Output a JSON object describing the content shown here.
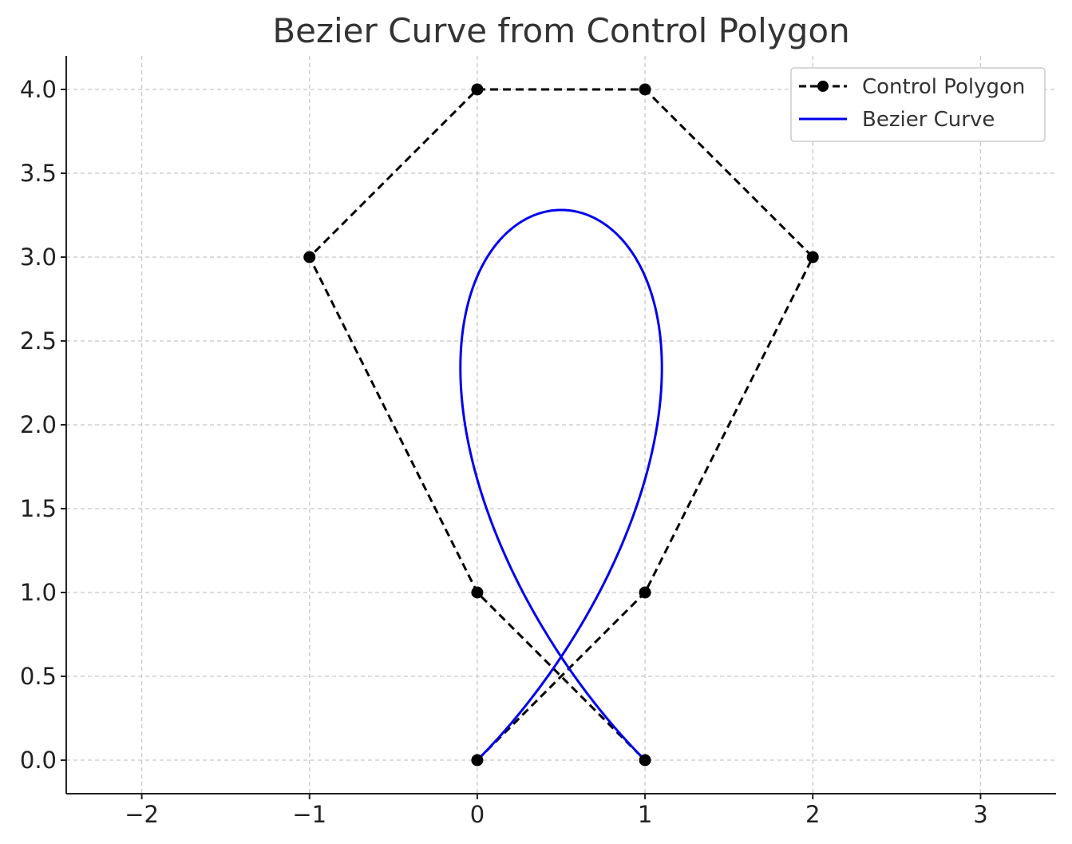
{
  "chart_data": {
    "type": "line",
    "title": "Bezier Curve from Control Polygon",
    "xlabel": "",
    "ylabel": "",
    "xlim": [
      -2.45,
      3.45
    ],
    "ylim": [
      -0.2,
      4.2
    ],
    "x_ticks": [
      -2,
      -1,
      0,
      1,
      2,
      3
    ],
    "x_tick_labels": [
      "−2",
      "−1",
      "0",
      "1",
      "2",
      "3"
    ],
    "y_ticks": [
      0.0,
      0.5,
      1.0,
      1.5,
      2.0,
      2.5,
      3.0,
      3.5,
      4.0
    ],
    "y_tick_labels": [
      "0.0",
      "0.5",
      "1.0",
      "1.5",
      "2.0",
      "2.5",
      "3.0",
      "3.5",
      "4.0"
    ],
    "grid": true,
    "legend_position": "top-right",
    "series": [
      {
        "name": "Control Polygon",
        "style": "dashed-with-markers",
        "color": "#000000",
        "points": [
          [
            0,
            0
          ],
          [
            1,
            1
          ],
          [
            2,
            3
          ],
          [
            1,
            4
          ],
          [
            0,
            4
          ],
          [
            -1,
            3
          ],
          [
            0,
            1
          ],
          [
            1,
            0
          ]
        ]
      },
      {
        "name": "Bezier Curve",
        "style": "solid",
        "color": "#0000ee",
        "control_points": [
          [
            0,
            0
          ],
          [
            1,
            1
          ],
          [
            2,
            3
          ],
          [
            1,
            4
          ],
          [
            0,
            4
          ],
          [
            -1,
            3
          ],
          [
            0,
            1
          ],
          [
            1,
            0
          ]
        ]
      }
    ]
  }
}
